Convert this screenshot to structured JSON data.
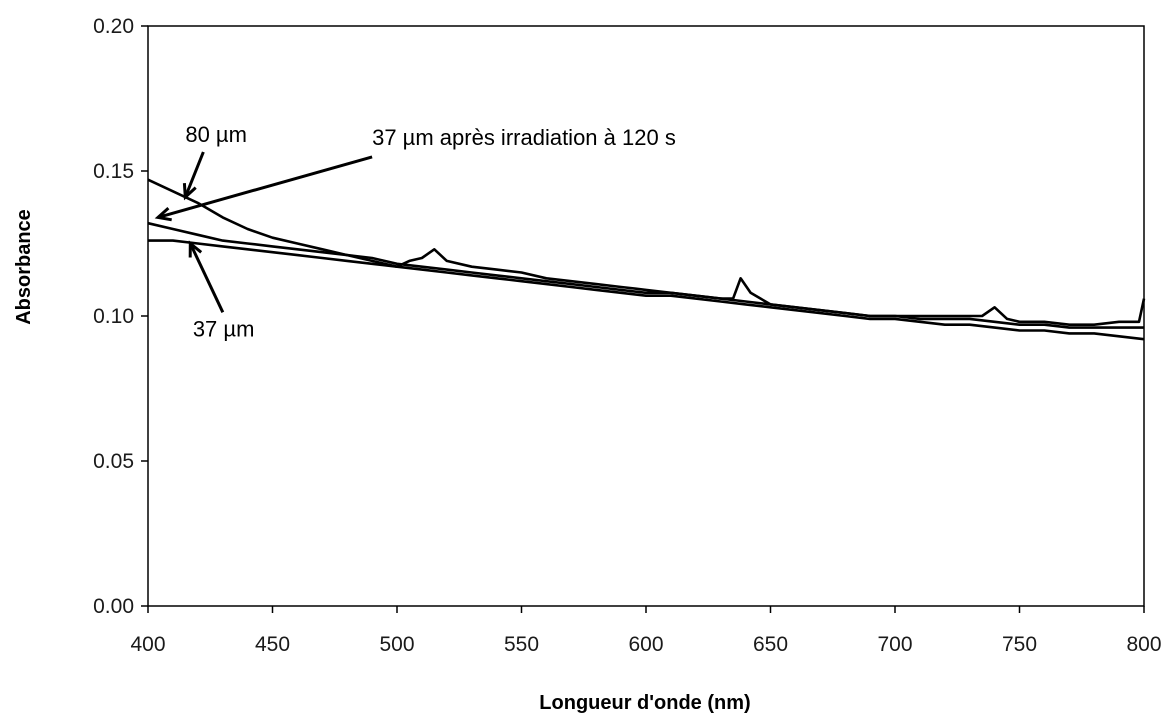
{
  "chart_data": {
    "type": "line",
    "title": "",
    "xlabel": "Longueur d'onde (nm)",
    "ylabel": "Absorbance",
    "xlim": [
      400,
      800
    ],
    "ylim": [
      0,
      0.2
    ],
    "x_ticks": [
      400,
      450,
      500,
      550,
      600,
      650,
      700,
      750,
      800
    ],
    "y_ticks": [
      "0.00",
      "0.05",
      "0.10",
      "0.15",
      "0.20"
    ],
    "grid": false,
    "series": [
      {
        "x": [
          400,
          410,
          420,
          430,
          440,
          450,
          460,
          470,
          480,
          490,
          500,
          505,
          510,
          515,
          520,
          530,
          540,
          550,
          560,
          570,
          580,
          590,
          600,
          610,
          620,
          630,
          635,
          638,
          642,
          650,
          660,
          670,
          680,
          690,
          700,
          710,
          720,
          730,
          735,
          740,
          745,
          750,
          760,
          770,
          780,
          790,
          798,
          800
        ],
        "y": [
          0.147,
          0.143,
          0.139,
          0.134,
          0.13,
          0.127,
          0.125,
          0.123,
          0.121,
          0.119,
          0.117,
          0.119,
          0.12,
          0.123,
          0.119,
          0.117,
          0.116,
          0.115,
          0.113,
          0.112,
          0.111,
          0.11,
          0.109,
          0.108,
          0.107,
          0.106,
          0.106,
          0.113,
          0.108,
          0.104,
          0.103,
          0.102,
          0.101,
          0.1,
          0.1,
          0.1,
          0.1,
          0.1,
          0.1,
          0.103,
          0.099,
          0.098,
          0.098,
          0.097,
          0.097,
          0.098,
          0.098,
          0.106
        ]
      },
      {
        "x": [
          400,
          410,
          420,
          430,
          440,
          450,
          460,
          470,
          480,
          490,
          500,
          510,
          520,
          530,
          540,
          550,
          560,
          570,
          580,
          590,
          600,
          610,
          620,
          630,
          640,
          650,
          660,
          670,
          680,
          690,
          700,
          710,
          720,
          730,
          740,
          750,
          760,
          770,
          780,
          790,
          800
        ],
        "y": [
          0.132,
          0.13,
          0.128,
          0.126,
          0.125,
          0.124,
          0.123,
          0.122,
          0.121,
          0.12,
          0.118,
          0.117,
          0.116,
          0.115,
          0.114,
          0.113,
          0.112,
          0.111,
          0.11,
          0.109,
          0.108,
          0.108,
          0.107,
          0.106,
          0.105,
          0.104,
          0.103,
          0.102,
          0.101,
          0.1,
          0.1,
          0.099,
          0.099,
          0.099,
          0.098,
          0.097,
          0.097,
          0.096,
          0.096,
          0.096,
          0.096
        ]
      },
      {
        "x": [
          400,
          410,
          420,
          430,
          440,
          450,
          460,
          470,
          480,
          490,
          500,
          510,
          520,
          530,
          540,
          550,
          560,
          570,
          580,
          590,
          600,
          610,
          620,
          630,
          640,
          650,
          660,
          670,
          680,
          690,
          700,
          710,
          720,
          730,
          740,
          750,
          760,
          770,
          780,
          790,
          800
        ],
        "y": [
          0.126,
          0.126,
          0.125,
          0.124,
          0.123,
          0.122,
          0.121,
          0.12,
          0.119,
          0.118,
          0.117,
          0.116,
          0.115,
          0.114,
          0.113,
          0.112,
          0.111,
          0.11,
          0.109,
          0.108,
          0.107,
          0.107,
          0.106,
          0.105,
          0.104,
          0.103,
          0.102,
          0.101,
          0.1,
          0.099,
          0.099,
          0.098,
          0.097,
          0.097,
          0.096,
          0.095,
          0.095,
          0.094,
          0.094,
          0.093,
          0.092
        ]
      }
    ],
    "annotations": [
      {
        "text": "80 µm",
        "x": 415,
        "y": 0.16,
        "arrow_to": [
          415,
          0.141
        ]
      },
      {
        "text": "37 µm après irradiation à 120 s",
        "x": 490,
        "y": 0.159,
        "arrow_to": [
          404,
          0.134
        ]
      },
      {
        "text": "37 µm",
        "x": 418,
        "y": 0.093,
        "arrow_to": [
          417,
          0.125
        ]
      }
    ]
  }
}
